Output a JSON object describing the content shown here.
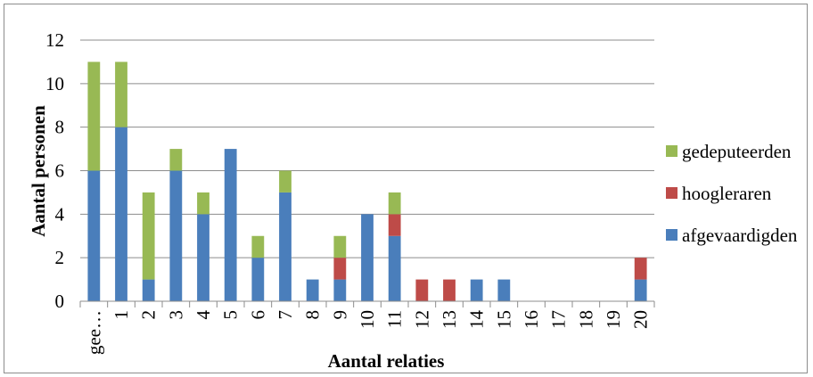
{
  "chart_data": {
    "type": "bar",
    "stacked": true,
    "title": "",
    "xlabel": "Aantal relaties",
    "ylabel": "Aantal personen",
    "ylim": [
      0,
      12
    ],
    "yticks": [
      "0",
      "2",
      "4",
      "6",
      "8",
      "10",
      "12"
    ],
    "grid": true,
    "legend_position": "right",
    "categories": [
      "gee…",
      "1",
      "2",
      "3",
      "4",
      "5",
      "6",
      "7",
      "8",
      "9",
      "10",
      "11",
      "12",
      "13",
      "14",
      "15",
      "16",
      "17",
      "18",
      "19",
      "20"
    ],
    "series": [
      {
        "name": "afgevaardigden",
        "color": "#4a7ebb",
        "values": [
          6,
          8,
          1,
          6,
          4,
          7,
          2,
          5,
          1,
          1,
          4,
          3,
          0,
          0,
          1,
          1,
          0,
          0,
          0,
          0,
          1
        ]
      },
      {
        "name": "hoogleraren",
        "color": "#be4b48",
        "values": [
          0,
          0,
          0,
          0,
          0,
          0,
          0,
          0,
          0,
          1,
          0,
          1,
          1,
          1,
          0,
          0,
          0,
          0,
          0,
          0,
          1
        ]
      },
      {
        "name": "gedeputeerden",
        "color": "#98b954",
        "values": [
          5,
          3,
          4,
          1,
          1,
          0,
          1,
          1,
          0,
          1,
          0,
          1,
          0,
          0,
          0,
          0,
          0,
          0,
          0,
          0,
          0
        ]
      }
    ],
    "legend_order": [
      "gedeputeerden",
      "hoogleraren",
      "afgevaardigden"
    ]
  }
}
